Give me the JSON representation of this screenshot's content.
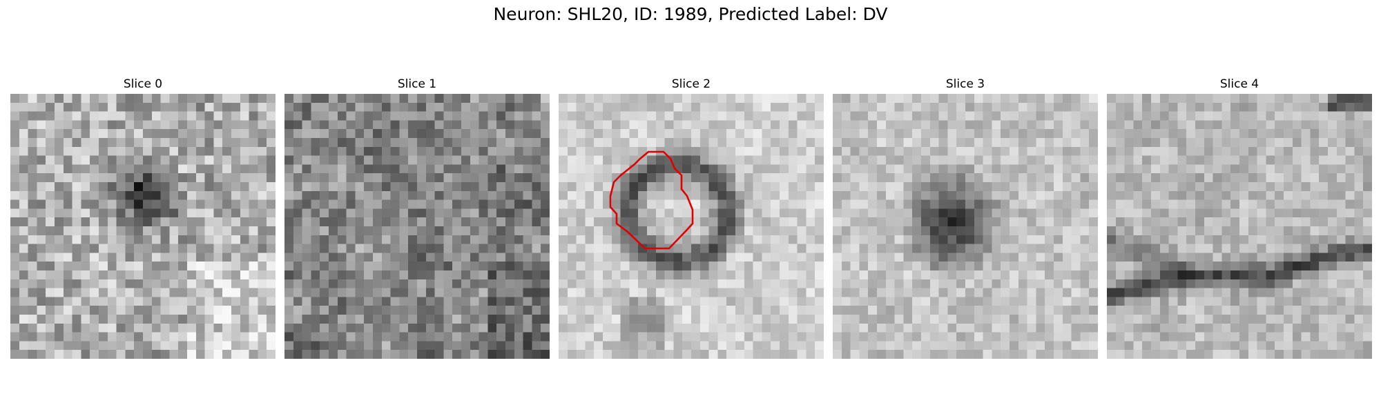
{
  "figure": {
    "title": "Neuron: SHL20, ID: 1989, Predicted Label: DV"
  },
  "panels": [
    {
      "title": "Slice 0",
      "pattern": "dark-spot-center"
    },
    {
      "title": "Slice 1",
      "pattern": "noisy-texture"
    },
    {
      "title": "Slice 2",
      "pattern": "ring-with-outline",
      "outline_color": "#e00000"
    },
    {
      "title": "Slice 3",
      "pattern": "dark-blob-center"
    },
    {
      "title": "Slice 4",
      "pattern": "curved-dark-band"
    }
  ],
  "colormap": "gray"
}
